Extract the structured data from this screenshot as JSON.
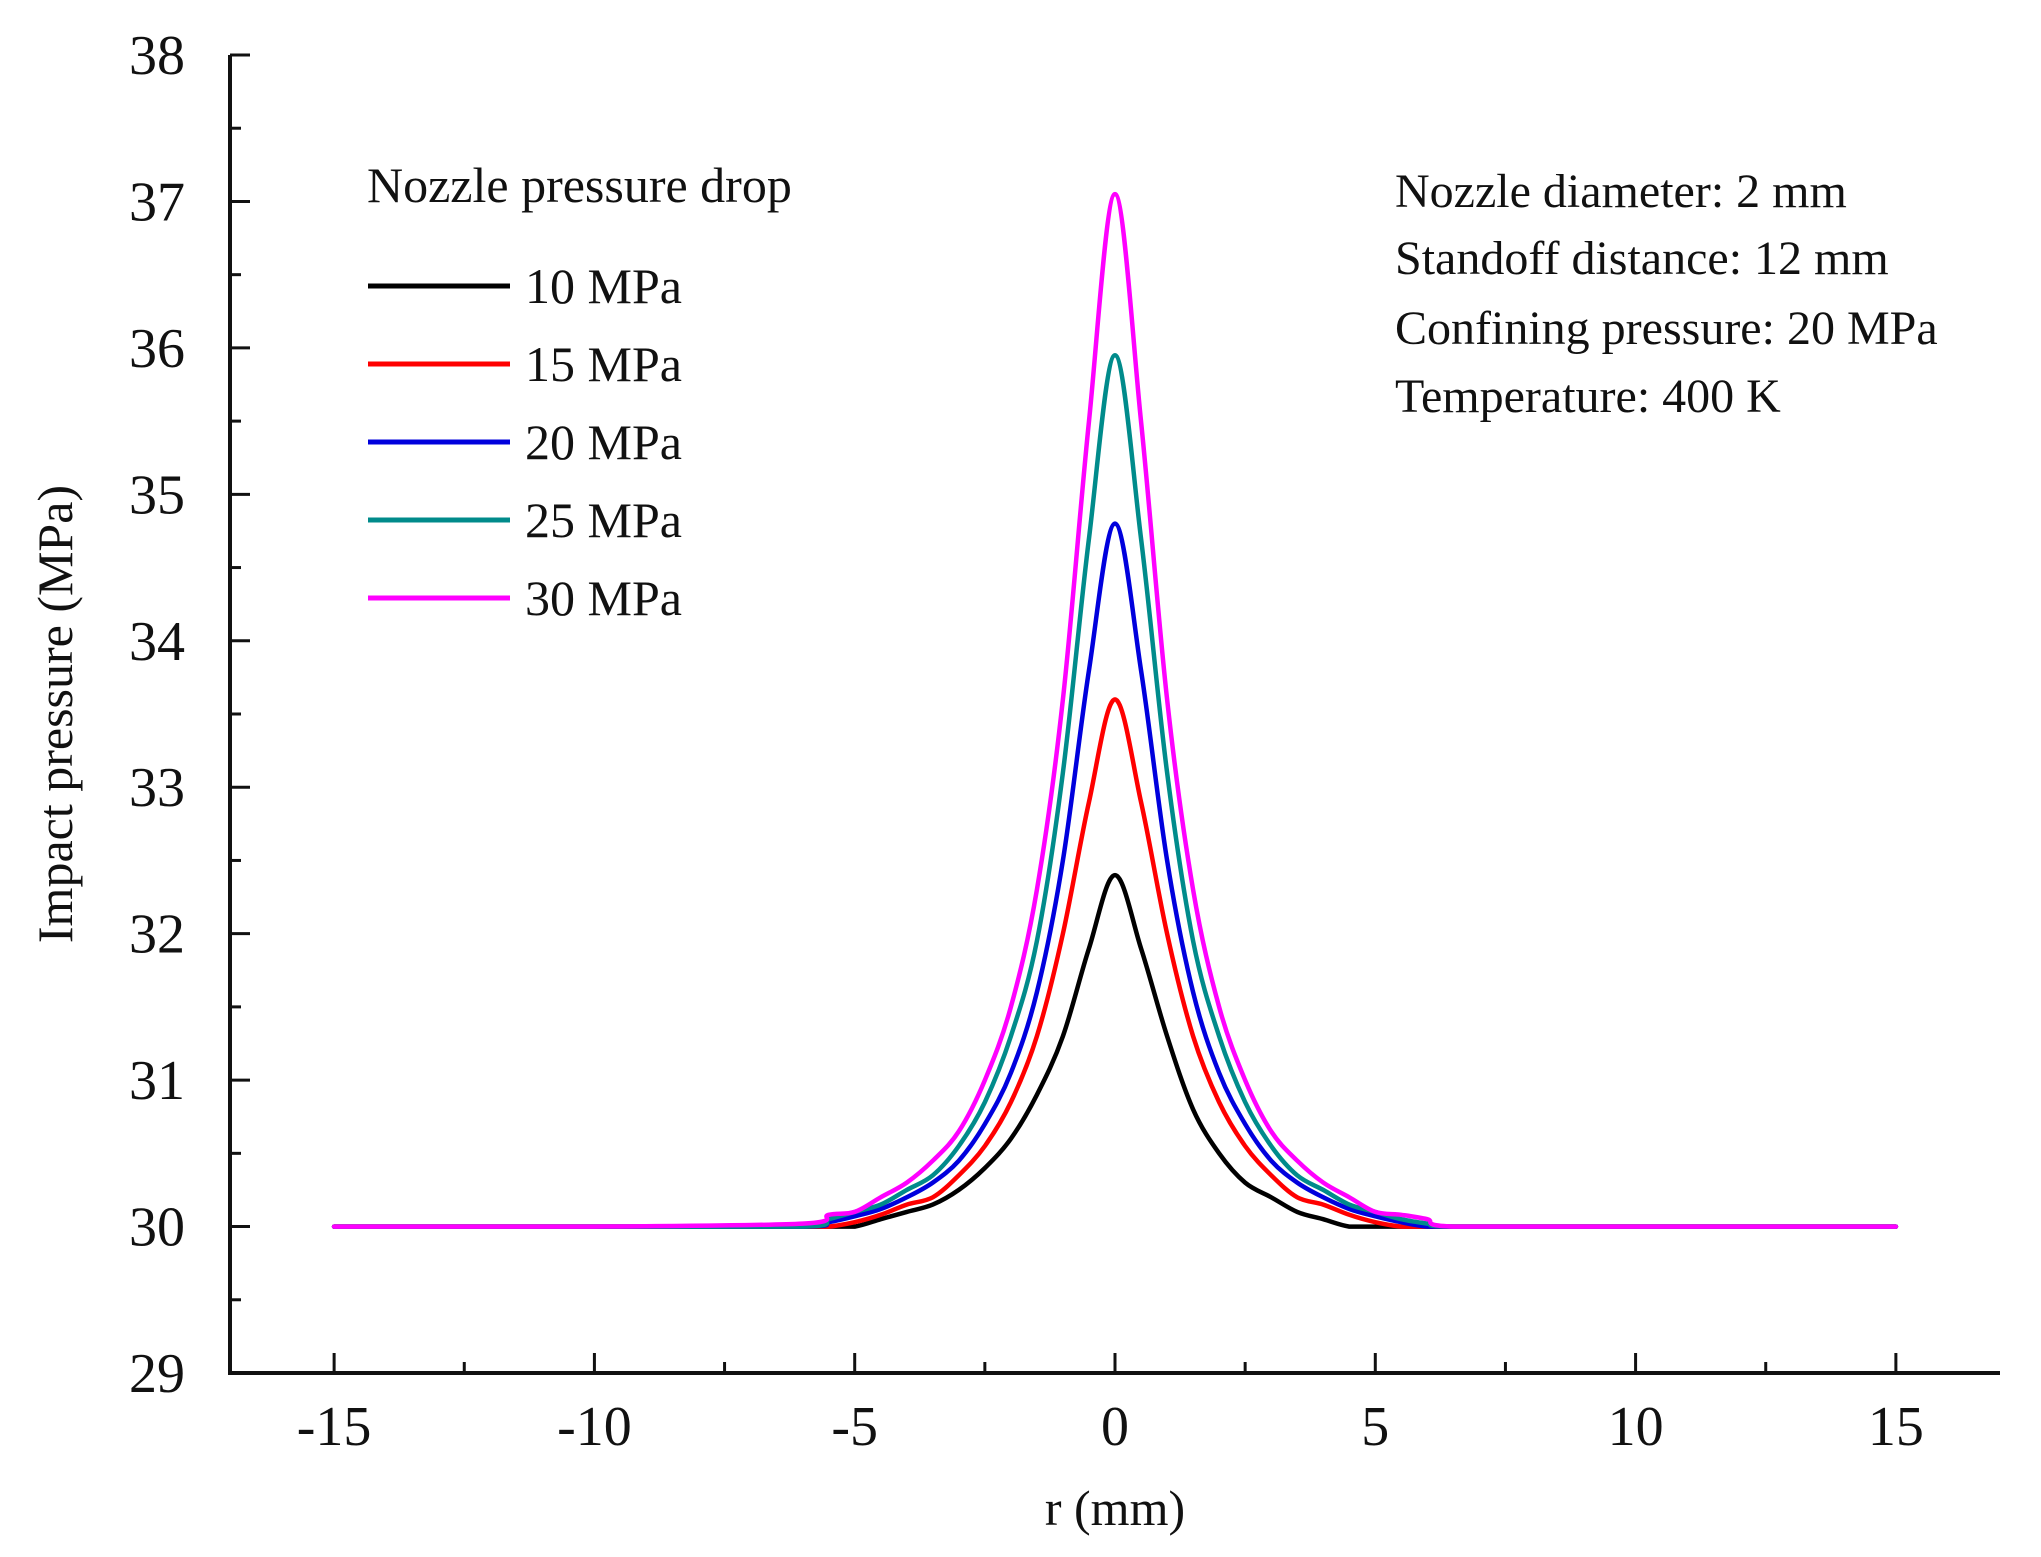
{
  "chart_data": {
    "type": "line",
    "title": "",
    "xlabel": "r (mm)",
    "ylabel": "Impact pressure (MPa)",
    "xlim": [
      -17,
      17
    ],
    "ylim": [
      29,
      38
    ],
    "xticks": [
      -15,
      -10,
      -5,
      0,
      5,
      10,
      15
    ],
    "xtick_labels": [
      "-15",
      "-10",
      "-5",
      "0",
      "5",
      "10",
      "15"
    ],
    "yticks": [
      29,
      30,
      31,
      32,
      33,
      34,
      35,
      36,
      37,
      38
    ],
    "ytick_labels": [
      "29",
      "30",
      "31",
      "32",
      "33",
      "34",
      "35",
      "36",
      "37",
      "38"
    ],
    "grid": false,
    "legend": {
      "title": "Nozzle pressure drop",
      "position": "top-left"
    },
    "annotations": [
      "Nozzle diameter: 2 mm",
      "Standoff distance: 12 mm",
      "Confining pressure: 20 MPa",
      "Temperature: 400 K"
    ],
    "x": [
      -15,
      -10,
      -6,
      -5.5,
      -5,
      -4.5,
      -4,
      -3.5,
      -3,
      -2.5,
      -2,
      -1.5,
      -1,
      -0.5,
      0,
      0.5,
      1,
      1.5,
      2,
      2.5,
      3,
      3.5,
      4,
      4.5,
      5,
      5.5,
      6,
      6.5,
      10,
      15
    ],
    "series": [
      {
        "name": "10 MPa",
        "color": "#000000",
        "values": [
          30,
          30,
          30,
          30,
          30.0,
          30.05,
          30.1,
          30.15,
          30.25,
          30.4,
          30.6,
          30.9,
          31.3,
          31.9,
          32.4,
          31.9,
          31.3,
          30.8,
          30.5,
          30.3,
          30.2,
          30.1,
          30.05,
          30.0,
          30,
          30,
          30,
          30,
          30,
          30
        ]
      },
      {
        "name": "15 MPa",
        "color": "#ff0000",
        "values": [
          30,
          30,
          30,
          30,
          30.03,
          30.08,
          30.15,
          30.2,
          30.35,
          30.55,
          30.85,
          31.3,
          32.0,
          32.9,
          33.6,
          32.9,
          32.0,
          31.3,
          30.85,
          30.55,
          30.35,
          30.2,
          30.15,
          30.08,
          30.03,
          30.0,
          30,
          30,
          30,
          30
        ]
      },
      {
        "name": "20 MPa",
        "color": "#0000dd",
        "values": [
          30,
          30,
          30,
          30.03,
          30.07,
          30.12,
          30.2,
          30.3,
          30.45,
          30.7,
          31.05,
          31.6,
          32.5,
          33.8,
          34.8,
          33.8,
          32.5,
          31.6,
          31.05,
          30.7,
          30.45,
          30.3,
          30.2,
          30.12,
          30.07,
          30.03,
          30.0,
          30,
          30,
          30
        ]
      },
      {
        "name": "25 MPa",
        "color": "#008b8b",
        "values": [
          30,
          30,
          30,
          30.05,
          30.1,
          30.15,
          30.25,
          30.35,
          30.55,
          30.85,
          31.3,
          31.95,
          33.1,
          34.7,
          35.95,
          34.7,
          33.1,
          31.95,
          31.3,
          30.85,
          30.55,
          30.35,
          30.25,
          30.15,
          30.1,
          30.05,
          30.02,
          30,
          30,
          30
        ]
      },
      {
        "name": "30 MPa",
        "color": "#ff00ff",
        "values": [
          30,
          30,
          30.02,
          30.08,
          30.1,
          30.2,
          30.3,
          30.45,
          30.65,
          31.0,
          31.5,
          32.3,
          33.6,
          35.5,
          37.05,
          35.5,
          33.6,
          32.3,
          31.5,
          31.0,
          30.65,
          30.45,
          30.3,
          30.2,
          30.1,
          30.08,
          30.05,
          30,
          30,
          30
        ]
      }
    ]
  }
}
